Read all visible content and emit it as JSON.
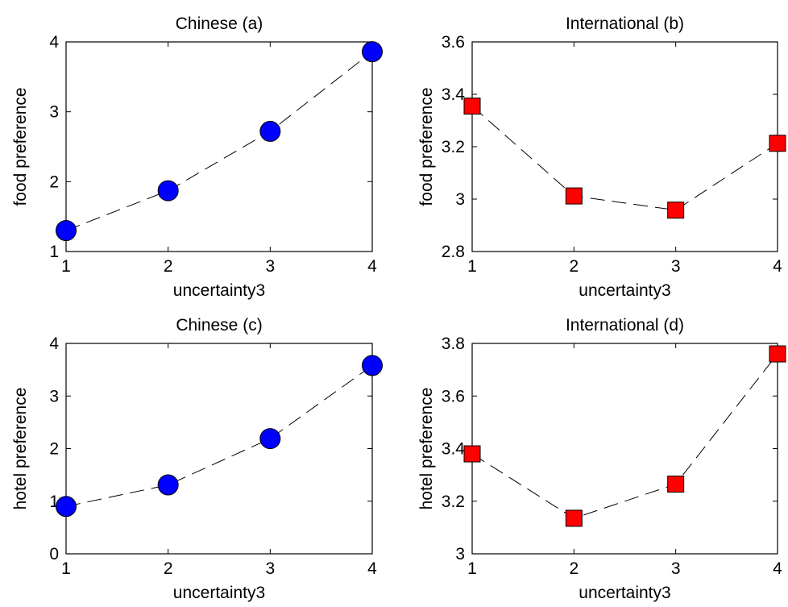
{
  "chart_data": [
    {
      "type": "line",
      "title": "Chinese (a)",
      "xlabel": "uncertainty3",
      "ylabel": "food preference",
      "x": [
        1,
        2,
        3,
        4
      ],
      "xlim": [
        1,
        4
      ],
      "ylim": [
        1,
        4
      ],
      "xticks": [
        "1",
        "2",
        "3",
        "4"
      ],
      "yticks": [
        "1",
        "2",
        "3",
        "4"
      ],
      "grid": false,
      "series": [
        {
          "values": [
            1.3,
            1.87,
            2.72,
            3.86
          ],
          "marker": "circle",
          "line_style": "dashed",
          "color": "#0000ff"
        }
      ]
    },
    {
      "type": "line",
      "title": "International (b)",
      "xlabel": "uncertainty3",
      "ylabel": "food preference",
      "x": [
        1,
        2,
        3,
        4
      ],
      "xlim": [
        1,
        4
      ],
      "ylim": [
        2.8,
        3.6
      ],
      "xticks": [
        "1",
        "2",
        "3",
        "4"
      ],
      "yticks": [
        "2.8",
        "3",
        "3.2",
        "3.4",
        "3.6"
      ],
      "grid": false,
      "series": [
        {
          "values": [
            3.355,
            3.012,
            2.958,
            3.213
          ],
          "marker": "square",
          "line_style": "dashed",
          "color": "#ff0000"
        }
      ]
    },
    {
      "type": "line",
      "title": "Chinese (c)",
      "xlabel": "uncertainty3",
      "ylabel": "hotel preference",
      "x": [
        1,
        2,
        3,
        4
      ],
      "xlim": [
        1,
        4
      ],
      "ylim": [
        0,
        4
      ],
      "xticks": [
        "1",
        "2",
        "3",
        "4"
      ],
      "yticks": [
        "0",
        "1",
        "2",
        "3",
        "4"
      ],
      "grid": false,
      "series": [
        {
          "values": [
            0.9,
            1.31,
            2.19,
            3.58
          ],
          "marker": "circle",
          "line_style": "dashed",
          "color": "#0000ff"
        }
      ]
    },
    {
      "type": "line",
      "title": "International (d)",
      "xlabel": "uncertainty3",
      "ylabel": "hotel preference",
      "x": [
        1,
        2,
        3,
        4
      ],
      "xlim": [
        1,
        4
      ],
      "ylim": [
        3,
        3.8
      ],
      "xticks": [
        "1",
        "2",
        "3",
        "4"
      ],
      "yticks": [
        "3",
        "3.2",
        "3.4",
        "3.6",
        "3.8"
      ],
      "grid": false,
      "series": [
        {
          "values": [
            3.38,
            3.135,
            3.265,
            3.76
          ],
          "marker": "square",
          "line_style": "dashed",
          "color": "#ff0000"
        }
      ]
    }
  ]
}
